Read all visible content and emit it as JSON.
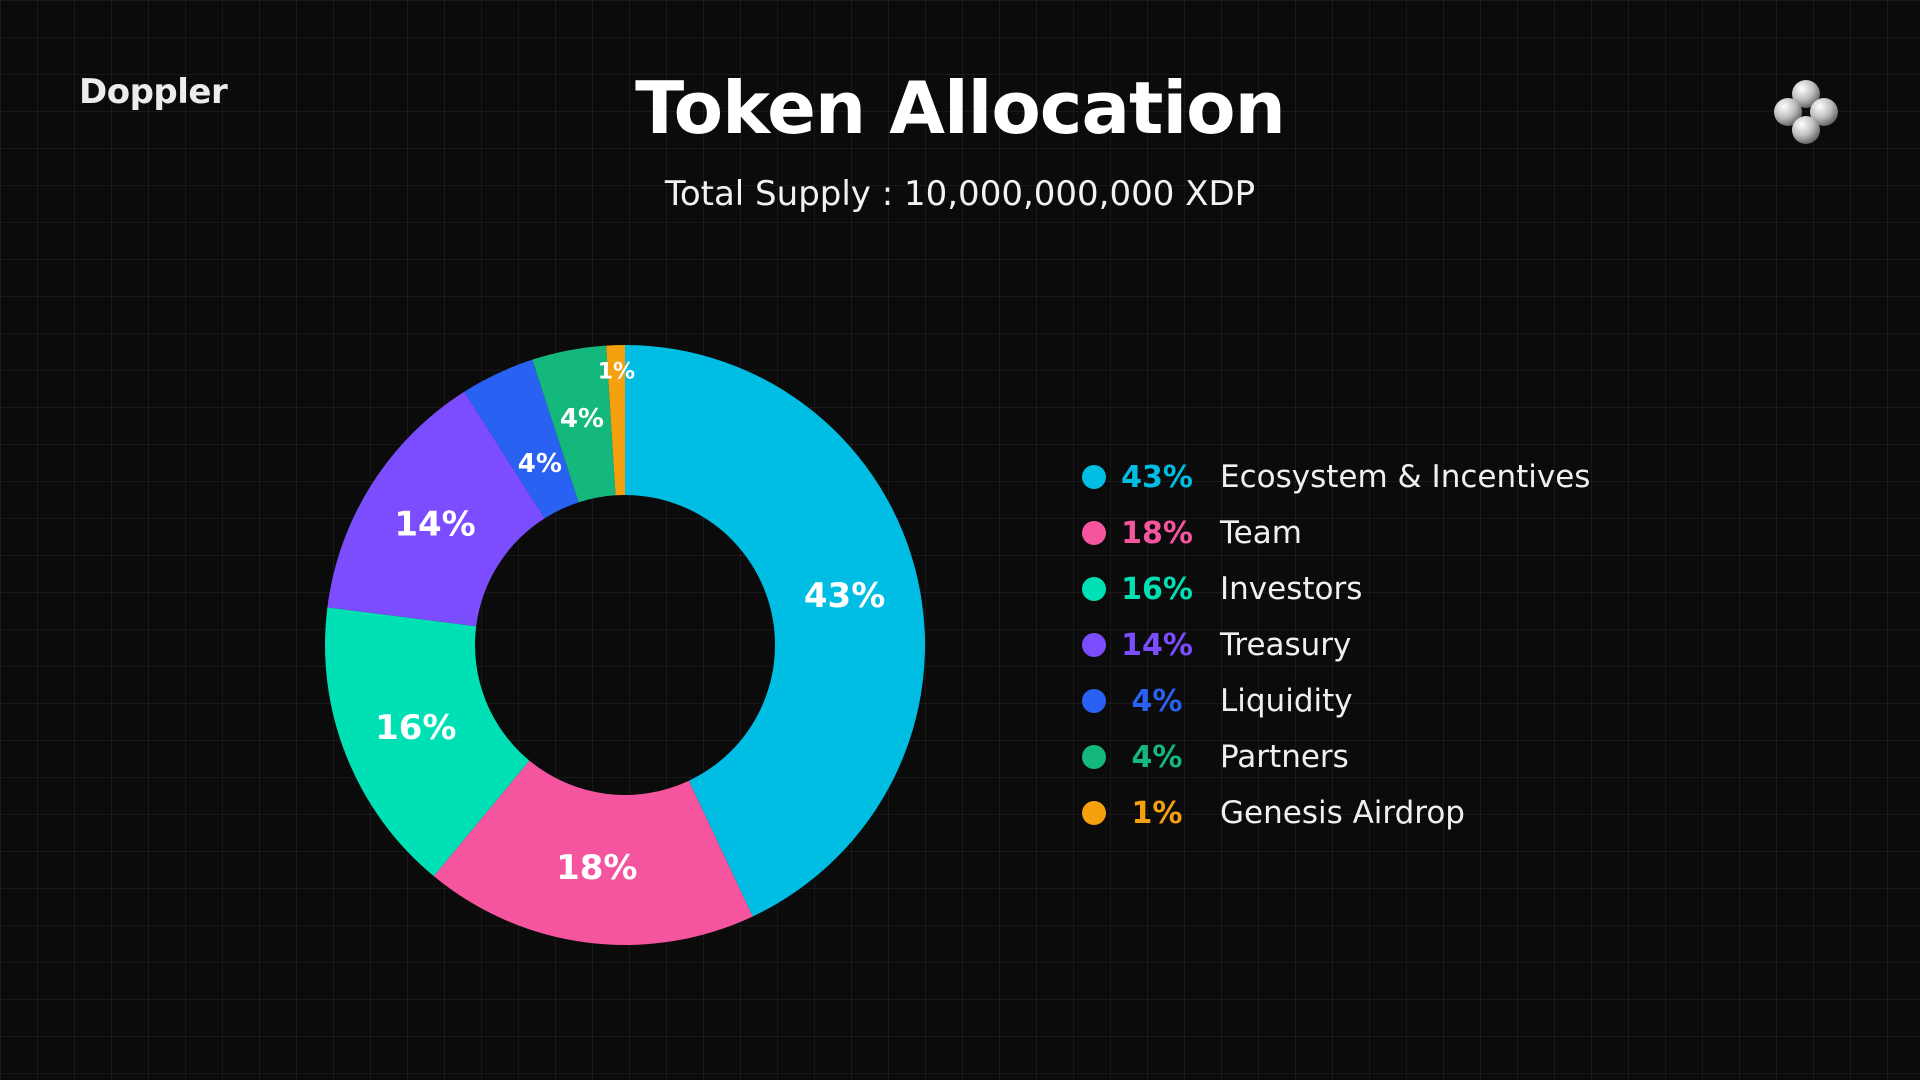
{
  "header": {
    "brand": "Doppler",
    "title": "Token Allocation",
    "subtitle": "Total Supply : 10,000,000,000 XDP",
    "logo_icon": "four-circles-logo-icon"
  },
  "chart_data": {
    "type": "pie",
    "donut": true,
    "start": "top",
    "direction": "clockwise",
    "legend_position": "right",
    "slices": [
      {
        "name": "Ecosystem & Incentives",
        "value": 43,
        "label": "43%",
        "color": "#00bde3"
      },
      {
        "name": "Team",
        "value": 18,
        "label": "18%",
        "color": "#f5549f"
      },
      {
        "name": "Investors",
        "value": 16,
        "label": "16%",
        "color": "#00e0b5"
      },
      {
        "name": "Treasury",
        "value": 14,
        "label": "14%",
        "color": "#7c4dff"
      },
      {
        "name": "Liquidity",
        "value": 4,
        "label": "4%",
        "color": "#2962f2"
      },
      {
        "name": "Partners",
        "value": 4,
        "label": "4%",
        "color": "#14b87c"
      },
      {
        "name": "Genesis Airdrop",
        "value": 1,
        "label": "1%",
        "color": "#f5a00f"
      }
    ]
  }
}
